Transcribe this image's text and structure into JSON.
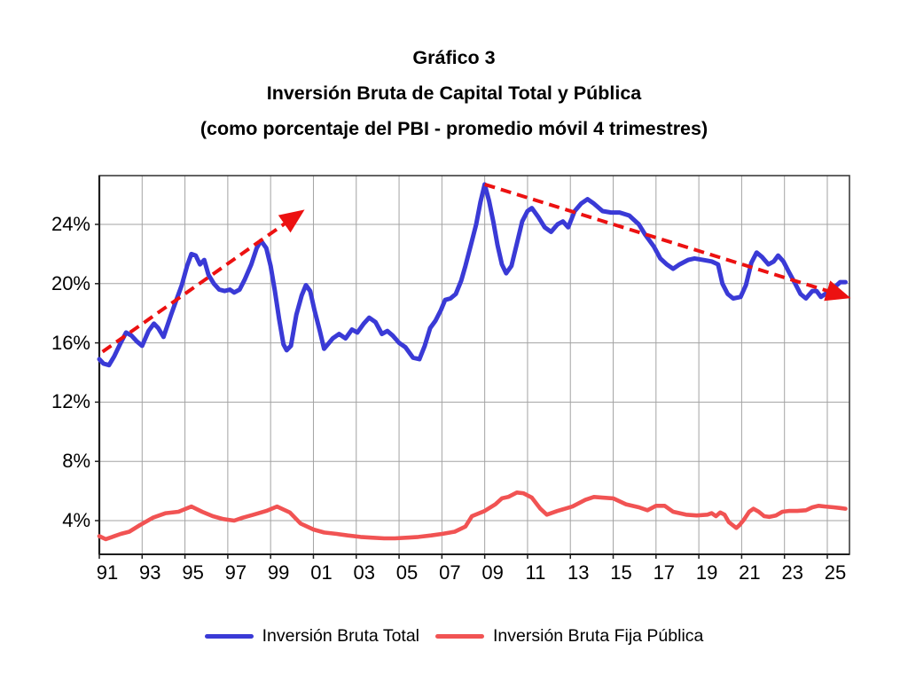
{
  "title": {
    "line1": "Gráfico 3",
    "line2": "Inversión Bruta de Capital Total y Pública",
    "line3": "(como porcentaje del PBI - promedio móvil 4 trimestres)"
  },
  "colors": {
    "total_line": "#3a3ad6",
    "publica_line": "#f15353",
    "trend_arrow": "#ec1111",
    "gridline": "#a3a3a3",
    "plot_border": "#3c3c3c"
  },
  "legend": {
    "items": [
      {
        "label": "Inversión Bruta Total",
        "color": "#3a3ad6"
      },
      {
        "label": "Inversión Bruta Fija Pública",
        "color": "#f15353"
      }
    ]
  },
  "chart_data": {
    "type": "line",
    "title": "Gráfico 3 — Inversión Bruta de Capital Total y Pública (como porcentaje del PBI - promedio móvil 4 trimestres)",
    "grid": "on",
    "legend_position": "bottom",
    "x_axis": {
      "range_years": [
        1991.0,
        2026.0
      ],
      "gridline_years": [
        1993,
        1995,
        1997,
        1999,
        2001,
        2003,
        2005,
        2007,
        2009,
        2011,
        2013,
        2015,
        2017,
        2019,
        2021,
        2023,
        2025
      ],
      "tick_labels": [
        "91",
        "93",
        "95",
        "97",
        "99",
        "01",
        "03",
        "05",
        "07",
        "09",
        "11",
        "13",
        "15",
        "17",
        "19",
        "21",
        "23",
        "25"
      ],
      "tick_label_years": [
        1991,
        1993,
        1995,
        1997,
        1999,
        2001,
        2003,
        2005,
        2007,
        2009,
        2011,
        2013,
        2015,
        2017,
        2019,
        2021,
        2023,
        2025
      ]
    },
    "y_axis": {
      "unit": "%",
      "range": [
        1.7,
        27.3
      ],
      "tick_values": [
        24,
        20,
        16,
        12,
        8,
        4
      ],
      "tick_labels": [
        "24%",
        "20%",
        "16%",
        "12%",
        "8%",
        "4%"
      ]
    },
    "series": [
      {
        "name": "Inversión Bruta Total",
        "color": "#3a3ad6",
        "style": "solid",
        "points": [
          [
            1991.0,
            14.9
          ],
          [
            1991.2,
            14.6
          ],
          [
            1991.45,
            14.5
          ],
          [
            1991.7,
            15.1
          ],
          [
            1992.0,
            16.0
          ],
          [
            1992.25,
            16.7
          ],
          [
            1992.5,
            16.5
          ],
          [
            1992.75,
            16.1
          ],
          [
            1993.0,
            15.8
          ],
          [
            1993.3,
            16.8
          ],
          [
            1993.55,
            17.3
          ],
          [
            1993.75,
            17.0
          ],
          [
            1994.0,
            16.4
          ],
          [
            1994.35,
            17.9
          ],
          [
            1994.6,
            18.9
          ],
          [
            1994.85,
            19.9
          ],
          [
            1995.1,
            21.2
          ],
          [
            1995.3,
            22.0
          ],
          [
            1995.5,
            21.9
          ],
          [
            1995.7,
            21.3
          ],
          [
            1995.9,
            21.6
          ],
          [
            1996.1,
            20.6
          ],
          [
            1996.35,
            20.0
          ],
          [
            1996.6,
            19.6
          ],
          [
            1996.85,
            19.5
          ],
          [
            1997.1,
            19.6
          ],
          [
            1997.3,
            19.4
          ],
          [
            1997.55,
            19.6
          ],
          [
            1997.8,
            20.3
          ],
          [
            1998.1,
            21.3
          ],
          [
            1998.35,
            22.4
          ],
          [
            1998.55,
            22.9
          ],
          [
            1998.8,
            22.4
          ],
          [
            1999.0,
            21.2
          ],
          [
            1999.2,
            19.5
          ],
          [
            1999.4,
            17.6
          ],
          [
            1999.6,
            15.9
          ],
          [
            1999.75,
            15.5
          ],
          [
            1999.95,
            15.8
          ],
          [
            2000.2,
            17.9
          ],
          [
            2000.45,
            19.2
          ],
          [
            2000.65,
            19.9
          ],
          [
            2000.85,
            19.5
          ],
          [
            2001.05,
            18.2
          ],
          [
            2001.3,
            16.8
          ],
          [
            2001.5,
            15.6
          ],
          [
            2001.9,
            16.3
          ],
          [
            2002.2,
            16.6
          ],
          [
            2002.5,
            16.3
          ],
          [
            2002.8,
            16.9
          ],
          [
            2003.05,
            16.7
          ],
          [
            2003.35,
            17.3
          ],
          [
            2003.6,
            17.7
          ],
          [
            2003.9,
            17.4
          ],
          [
            2004.2,
            16.6
          ],
          [
            2004.45,
            16.8
          ],
          [
            2004.7,
            16.5
          ],
          [
            2005.0,
            16.0
          ],
          [
            2005.3,
            15.7
          ],
          [
            2005.65,
            15.0
          ],
          [
            2005.95,
            14.9
          ],
          [
            2006.2,
            15.8
          ],
          [
            2006.45,
            17.0
          ],
          [
            2006.7,
            17.5
          ],
          [
            2006.95,
            18.2
          ],
          [
            2007.15,
            18.9
          ],
          [
            2007.4,
            19.0
          ],
          [
            2007.65,
            19.3
          ],
          [
            2007.9,
            20.2
          ],
          [
            2008.1,
            21.2
          ],
          [
            2008.35,
            22.6
          ],
          [
            2008.6,
            24.0
          ],
          [
            2008.8,
            25.5
          ],
          [
            2009.0,
            26.7
          ],
          [
            2009.2,
            25.6
          ],
          [
            2009.4,
            24.2
          ],
          [
            2009.6,
            22.6
          ],
          [
            2009.8,
            21.3
          ],
          [
            2010.0,
            20.7
          ],
          [
            2010.25,
            21.2
          ],
          [
            2010.5,
            22.7
          ],
          [
            2010.75,
            24.2
          ],
          [
            2011.0,
            24.9
          ],
          [
            2011.2,
            25.1
          ],
          [
            2011.5,
            24.5
          ],
          [
            2011.8,
            23.8
          ],
          [
            2012.1,
            23.5
          ],
          [
            2012.4,
            24.0
          ],
          [
            2012.65,
            24.2
          ],
          [
            2012.9,
            23.8
          ],
          [
            2013.2,
            24.9
          ],
          [
            2013.5,
            25.4
          ],
          [
            2013.8,
            25.7
          ],
          [
            2014.1,
            25.4
          ],
          [
            2014.5,
            24.9
          ],
          [
            2014.9,
            24.8
          ],
          [
            2015.3,
            24.8
          ],
          [
            2015.75,
            24.6
          ],
          [
            2016.2,
            24.0
          ],
          [
            2016.5,
            23.3
          ],
          [
            2016.9,
            22.5
          ],
          [
            2017.2,
            21.7
          ],
          [
            2017.5,
            21.3
          ],
          [
            2017.8,
            21.0
          ],
          [
            2018.1,
            21.3
          ],
          [
            2018.5,
            21.6
          ],
          [
            2018.8,
            21.7
          ],
          [
            2019.2,
            21.6
          ],
          [
            2019.6,
            21.5
          ],
          [
            2019.9,
            21.3
          ],
          [
            2020.1,
            20.0
          ],
          [
            2020.35,
            19.3
          ],
          [
            2020.6,
            19.0
          ],
          [
            2020.95,
            19.1
          ],
          [
            2021.2,
            19.9
          ],
          [
            2021.45,
            21.4
          ],
          [
            2021.7,
            22.1
          ],
          [
            2021.95,
            21.8
          ],
          [
            2022.25,
            21.3
          ],
          [
            2022.5,
            21.5
          ],
          [
            2022.7,
            21.9
          ],
          [
            2022.95,
            21.5
          ],
          [
            2023.2,
            20.8
          ],
          [
            2023.5,
            20.0
          ],
          [
            2023.75,
            19.3
          ],
          [
            2024.0,
            19.0
          ],
          [
            2024.3,
            19.5
          ],
          [
            2024.5,
            19.5
          ],
          [
            2024.7,
            19.1
          ],
          [
            2025.0,
            19.4
          ],
          [
            2025.3,
            19.7
          ],
          [
            2025.6,
            20.1
          ],
          [
            2025.85,
            20.1
          ]
        ]
      },
      {
        "name": "Inversión Bruta Fija Pública",
        "color": "#f15353",
        "style": "solid",
        "points": [
          [
            1991.0,
            2.95
          ],
          [
            1991.3,
            2.75
          ],
          [
            1991.6,
            2.9
          ],
          [
            1992.0,
            3.1
          ],
          [
            1992.4,
            3.25
          ],
          [
            1992.9,
            3.7
          ],
          [
            1993.5,
            4.2
          ],
          [
            1994.1,
            4.5
          ],
          [
            1994.7,
            4.6
          ],
          [
            1995.3,
            4.95
          ],
          [
            1995.8,
            4.6
          ],
          [
            1996.3,
            4.3
          ],
          [
            1996.8,
            4.1
          ],
          [
            1997.3,
            4.0
          ],
          [
            1997.7,
            4.2
          ],
          [
            1998.2,
            4.4
          ],
          [
            1998.8,
            4.65
          ],
          [
            1999.3,
            4.95
          ],
          [
            1999.9,
            4.55
          ],
          [
            2000.4,
            3.8
          ],
          [
            2001.0,
            3.4
          ],
          [
            2001.5,
            3.2
          ],
          [
            2002.1,
            3.1
          ],
          [
            2002.6,
            3.0
          ],
          [
            2003.2,
            2.9
          ],
          [
            2003.7,
            2.85
          ],
          [
            2004.3,
            2.8
          ],
          [
            2004.8,
            2.8
          ],
          [
            2005.4,
            2.85
          ],
          [
            2005.9,
            2.9
          ],
          [
            2006.5,
            3.0
          ],
          [
            2007.0,
            3.1
          ],
          [
            2007.6,
            3.25
          ],
          [
            2008.1,
            3.6
          ],
          [
            2008.4,
            4.3
          ],
          [
            2009.0,
            4.65
          ],
          [
            2009.5,
            5.1
          ],
          [
            2009.8,
            5.5
          ],
          [
            2010.1,
            5.6
          ],
          [
            2010.5,
            5.9
          ],
          [
            2010.8,
            5.85
          ],
          [
            2011.2,
            5.55
          ],
          [
            2011.6,
            4.8
          ],
          [
            2011.9,
            4.4
          ],
          [
            2012.4,
            4.65
          ],
          [
            2013.1,
            4.95
          ],
          [
            2013.7,
            5.4
          ],
          [
            2014.1,
            5.6
          ],
          [
            2014.5,
            5.55
          ],
          [
            2015.0,
            5.5
          ],
          [
            2015.6,
            5.1
          ],
          [
            2016.2,
            4.9
          ],
          [
            2016.6,
            4.7
          ],
          [
            2017.0,
            5.0
          ],
          [
            2017.4,
            5.0
          ],
          [
            2017.8,
            4.6
          ],
          [
            2018.4,
            4.4
          ],
          [
            2018.9,
            4.35
          ],
          [
            2019.4,
            4.4
          ],
          [
            2019.6,
            4.5
          ],
          [
            2019.8,
            4.3
          ],
          [
            2020.0,
            4.55
          ],
          [
            2020.2,
            4.4
          ],
          [
            2020.4,
            3.9
          ],
          [
            2020.75,
            3.5
          ],
          [
            2020.9,
            3.7
          ],
          [
            2021.1,
            4.05
          ],
          [
            2021.35,
            4.6
          ],
          [
            2021.55,
            4.8
          ],
          [
            2021.8,
            4.6
          ],
          [
            2022.05,
            4.3
          ],
          [
            2022.3,
            4.25
          ],
          [
            2022.6,
            4.35
          ],
          [
            2022.9,
            4.6
          ],
          [
            2023.2,
            4.65
          ],
          [
            2023.6,
            4.65
          ],
          [
            2024.0,
            4.7
          ],
          [
            2024.3,
            4.9
          ],
          [
            2024.6,
            5.0
          ],
          [
            2024.9,
            4.95
          ],
          [
            2025.3,
            4.9
          ],
          [
            2025.6,
            4.85
          ],
          [
            2025.85,
            4.8
          ]
        ]
      }
    ],
    "annotations": [
      {
        "id": "trend-arrow-up",
        "type": "arrow",
        "style": "dashed",
        "color": "#ec1111",
        "from": [
          1991.15,
          15.4
        ],
        "to": [
          2000.25,
          24.65
        ]
      },
      {
        "id": "trend-arrow-down",
        "type": "arrow",
        "style": "dashed",
        "color": "#ec1111",
        "from": [
          2009.0,
          26.7
        ],
        "to": [
          2025.7,
          19.2
        ]
      }
    ]
  }
}
